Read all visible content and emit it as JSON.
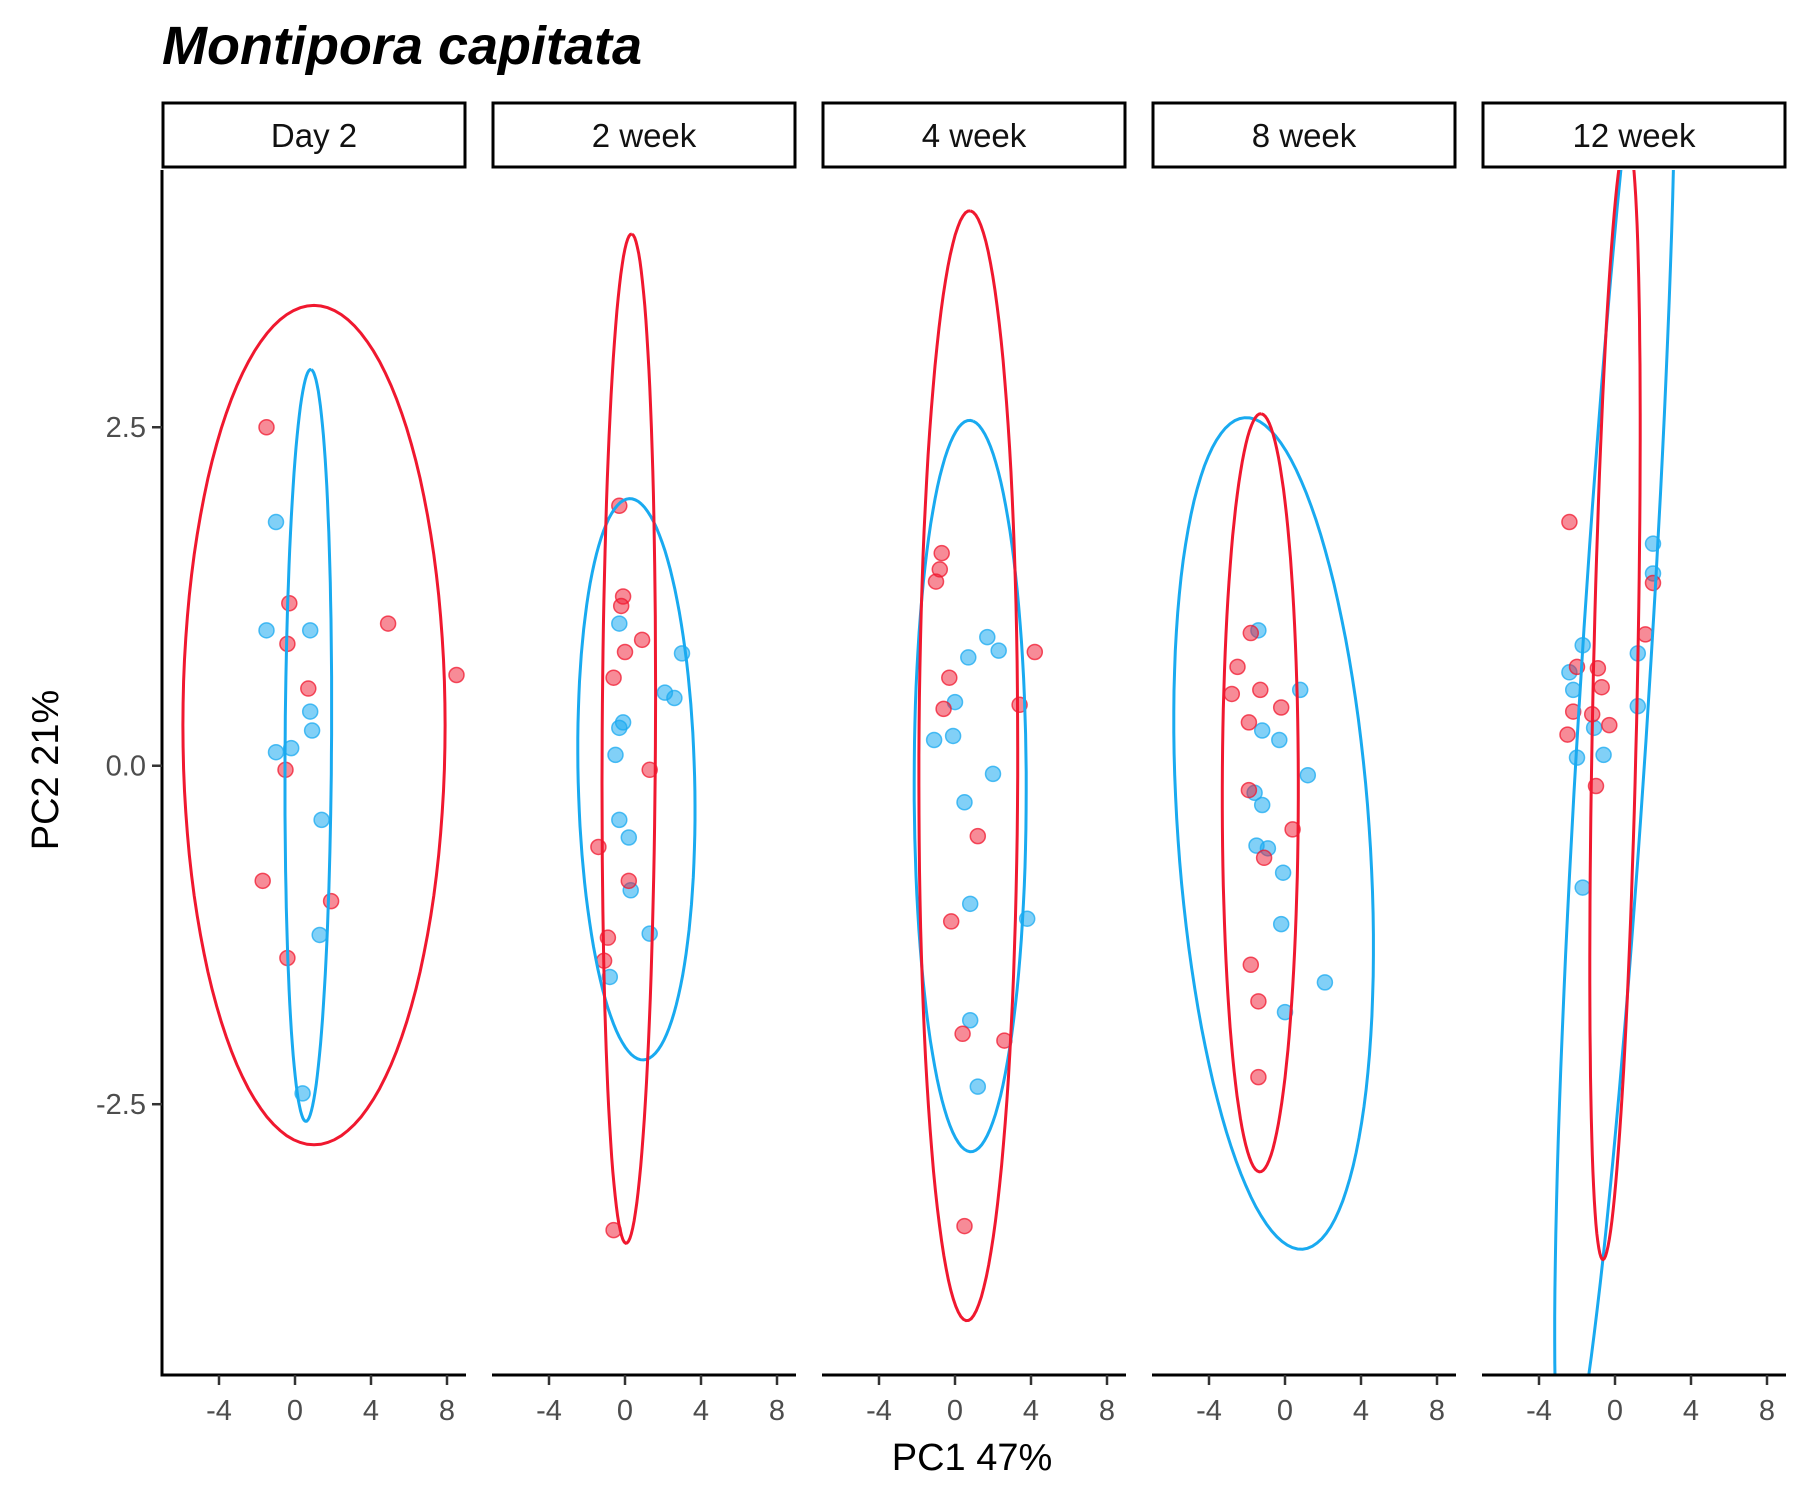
{
  "chart_data": {
    "type": "scatter",
    "title": "Montipora capitata",
    "xlabel": "PC1 47%",
    "ylabel": "PC2 21%",
    "xlim": [
      -7,
      9
    ],
    "ylim": [
      -4.5,
      4.4
    ],
    "x_ticks": [
      -4,
      0,
      4,
      8
    ],
    "x_tick_labels": [
      "-4",
      "0",
      "4",
      "8"
    ],
    "y_ticks": [
      2.5,
      0.0,
      -2.5
    ],
    "y_tick_labels": [
      "2.5",
      "0.0",
      "-2.5"
    ],
    "grid": false,
    "legend": "none",
    "colors": {
      "red": "#f0182f",
      "blue": "#19aaf0"
    },
    "panels": [
      {
        "label": "Day 2",
        "red_points": [
          [
            -1.5,
            2.5
          ],
          [
            -0.3,
            1.2
          ],
          [
            -0.4,
            0.9
          ],
          [
            4.9,
            1.05
          ],
          [
            8.5,
            0.67
          ],
          [
            0.7,
            0.57
          ],
          [
            -0.5,
            -0.03
          ],
          [
            -1.7,
            -0.85
          ],
          [
            -0.4,
            -1.42
          ],
          [
            1.9,
            -1.0
          ]
        ],
        "blue_points": [
          [
            -1.0,
            1.8
          ],
          [
            -1.5,
            1.0
          ],
          [
            0.8,
            1.0
          ],
          [
            0.8,
            0.4
          ],
          [
            0.9,
            0.26
          ],
          [
            -1.0,
            0.1
          ],
          [
            -0.2,
            0.13
          ],
          [
            1.4,
            -0.4
          ],
          [
            1.3,
            -1.25
          ],
          [
            0.4,
            -2.42
          ]
        ],
        "red_ellipse": {
          "cx": 1.0,
          "cy": 0.3,
          "rx": 6.9,
          "ry": 3.1,
          "angle": 0
        },
        "blue_ellipse": {
          "cx": 0.7,
          "cy": 0.15,
          "rx": 2.78,
          "ry": 1.22,
          "angle": 86.8
        }
      },
      {
        "label": "2 week",
        "red_points": [
          [
            -0.3,
            1.92
          ],
          [
            -0.1,
            1.25
          ],
          [
            -0.2,
            1.18
          ],
          [
            0.9,
            0.93
          ],
          [
            0.0,
            0.84
          ],
          [
            -0.6,
            0.65
          ],
          [
            1.3,
            -0.03
          ],
          [
            -1.4,
            -0.6
          ],
          [
            0.2,
            -0.85
          ],
          [
            -0.9,
            -1.27
          ],
          [
            -1.1,
            -1.44
          ],
          [
            -0.6,
            -3.43
          ]
        ],
        "blue_points": [
          [
            -0.3,
            1.05
          ],
          [
            3.0,
            0.83
          ],
          [
            2.1,
            0.54
          ],
          [
            2.6,
            0.5
          ],
          [
            -0.1,
            0.32
          ],
          [
            -0.3,
            0.28
          ],
          [
            -0.5,
            0.08
          ],
          [
            -0.3,
            -0.4
          ],
          [
            0.2,
            -0.53
          ],
          [
            0.3,
            -0.92
          ],
          [
            1.3,
            -1.24
          ],
          [
            -0.8,
            -1.56
          ]
        ],
        "red_ellipse": {
          "cx": 0.2,
          "cy": 0.2,
          "rx": 3.73,
          "ry": 1.4,
          "angle": 87.5
        },
        "blue_ellipse": {
          "cx": 0.6,
          "cy": -0.1,
          "rx": 2.05,
          "ry": 3.1,
          "angle": 82.4
        }
      },
      {
        "label": "4 week",
        "red_points": [
          [
            -0.7,
            1.57
          ],
          [
            -0.8,
            1.45
          ],
          [
            -1.0,
            1.36
          ],
          [
            4.2,
            0.84
          ],
          [
            -0.3,
            0.65
          ],
          [
            -0.6,
            0.42
          ],
          [
            3.4,
            0.45
          ],
          [
            1.2,
            -0.52
          ],
          [
            -0.2,
            -1.15
          ],
          [
            0.4,
            -1.98
          ],
          [
            2.6,
            -2.03
          ],
          [
            0.5,
            -3.4
          ]
        ],
        "blue_points": [
          [
            1.7,
            0.95
          ],
          [
            2.3,
            0.85
          ],
          [
            0.7,
            0.8
          ],
          [
            0.0,
            0.47
          ],
          [
            -1.1,
            0.19
          ],
          [
            -0.1,
            0.22
          ],
          [
            2.0,
            -0.06
          ],
          [
            0.5,
            -0.27
          ],
          [
            0.8,
            -1.02
          ],
          [
            3.8,
            -1.13
          ],
          [
            0.8,
            -1.88
          ],
          [
            1.2,
            -2.37
          ]
        ],
        "red_ellipse": {
          "cx": 0.7,
          "cy": 0.0,
          "rx": 4.1,
          "ry": 2.6,
          "angle": 88.3
        },
        "blue_ellipse": {
          "cx": 0.8,
          "cy": -0.15,
          "rx": 2.7,
          "ry": 2.95,
          "angle": 86.5
        }
      },
      {
        "label": "8 week",
        "red_points": [
          [
            -1.8,
            0.98
          ],
          [
            -2.5,
            0.73
          ],
          [
            -1.3,
            0.56
          ],
          [
            -2.8,
            0.53
          ],
          [
            -0.2,
            0.43
          ],
          [
            -1.9,
            0.32
          ],
          [
            -1.9,
            -0.18
          ],
          [
            -1.1,
            -0.68
          ],
          [
            0.4,
            -0.47
          ],
          [
            -1.8,
            -1.47
          ],
          [
            -1.4,
            -1.74
          ],
          [
            -1.4,
            -2.3
          ]
        ],
        "blue_points": [
          [
            -1.4,
            1.0
          ],
          [
            0.8,
            0.56
          ],
          [
            -1.2,
            0.26
          ],
          [
            -0.3,
            0.19
          ],
          [
            1.2,
            -0.07
          ],
          [
            -1.6,
            -0.2
          ],
          [
            -1.2,
            -0.29
          ],
          [
            -1.5,
            -0.59
          ],
          [
            -0.9,
            -0.61
          ],
          [
            -0.1,
            -0.79
          ],
          [
            -0.2,
            -1.17
          ],
          [
            2.1,
            -1.6
          ],
          [
            0.0,
            -1.82
          ]
        ],
        "red_ellipse": {
          "cx": -1.3,
          "cy": -0.2,
          "rx": 2.8,
          "ry": 2.0,
          "angle": 88.9
        },
        "blue_ellipse": {
          "cx": -0.6,
          "cy": -0.5,
          "rx": 2.9,
          "ry": 5.35,
          "angle": 77.0
        }
      },
      {
        "label": "12 week",
        "red_points": [
          [
            -2.4,
            1.8
          ],
          [
            2.0,
            1.35
          ],
          [
            1.6,
            0.97
          ],
          [
            -2.0,
            0.73
          ],
          [
            -0.9,
            0.72
          ],
          [
            -0.7,
            0.58
          ],
          [
            -2.2,
            0.4
          ],
          [
            -1.2,
            0.38
          ],
          [
            -0.3,
            0.3
          ],
          [
            -2.5,
            0.23
          ],
          [
            -1.0,
            -0.15
          ]
        ],
        "blue_points": [
          [
            2.0,
            1.64
          ],
          [
            2.0,
            1.42
          ],
          [
            -1.7,
            0.89
          ],
          [
            1.2,
            0.83
          ],
          [
            -2.4,
            0.69
          ],
          [
            -2.2,
            0.56
          ],
          [
            1.2,
            0.44
          ],
          [
            -1.1,
            0.28
          ],
          [
            -0.6,
            0.08
          ],
          [
            -2.0,
            0.06
          ],
          [
            -1.7,
            -0.9
          ]
        ],
        "red_ellipse": {
          "cx": 0.0,
          "cy": 0.5,
          "rx": 4.2,
          "ry": 1.15,
          "angle": 80.6
        },
        "blue_ellipse": {
          "cx": 0.0,
          "cy": 0.6,
          "rx": 6.45,
          "ry": 1.65,
          "angle": 64.2
        }
      }
    ]
  }
}
